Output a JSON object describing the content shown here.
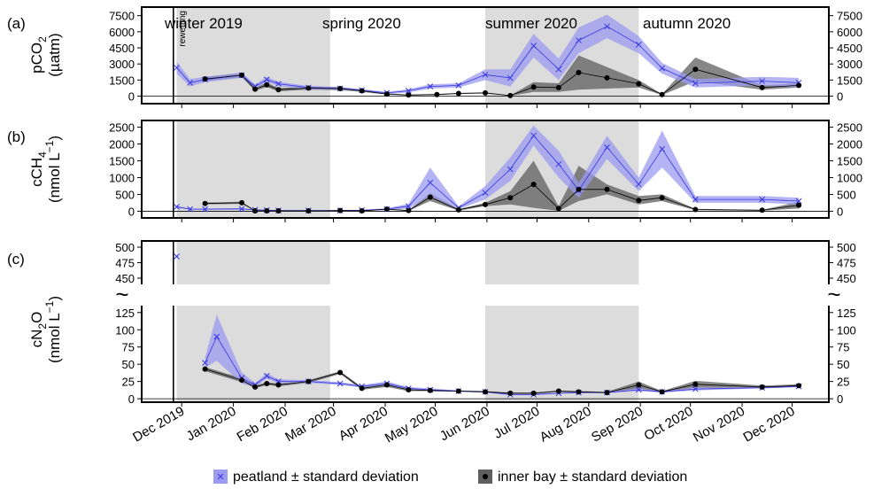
{
  "chart_data": [
    {
      "panel_label": "(a)",
      "type": "line",
      "ylabel_main": "pCO",
      "ylabel_sub": "2",
      "ylabel_unit": "(µatm)",
      "ylim": [
        -700,
        8300
      ],
      "yticks": [
        0,
        1500,
        3000,
        4500,
        6000,
        7500
      ],
      "seasons": [
        "winter 2019",
        "spring 2020",
        "summer 2020",
        "autumn 2020"
      ],
      "annotation": "rewetting",
      "series": [
        {
          "name": "peatland ± standard deviation",
          "x": [
            "2019-11-28",
            "2019-12-06",
            "2019-12-15",
            "2020-01-06",
            "2020-01-14",
            "2020-01-21",
            "2020-01-28",
            "2020-02-15",
            "2020-03-05",
            "2020-03-18",
            "2020-04-02",
            "2020-04-15",
            "2020-04-28",
            "2020-05-15",
            "2020-05-31",
            "2020-06-15",
            "2020-06-29",
            "2020-07-14",
            "2020-07-26",
            "2020-08-12",
            "2020-08-31",
            "2020-09-14",
            "2020-10-04",
            "2020-11-13",
            "2020-12-05"
          ],
          "y": [
            2650,
            1250,
            1550,
            1950,
            900,
            1550,
            1150,
            800,
            720,
            550,
            300,
            500,
            900,
            1000,
            2000,
            1700,
            4700,
            2500,
            5200,
            6500,
            4800,
            2600,
            1200,
            1400,
            1250
          ],
          "lo": [
            2100,
            900,
            1300,
            1700,
            700,
            1300,
            950,
            650,
            600,
            450,
            200,
            350,
            700,
            800,
            1500,
            900,
            3600,
            1500,
            4000,
            5400,
            4000,
            2100,
            800,
            1000,
            800
          ],
          "hi": [
            3200,
            1600,
            1800,
            2200,
            1100,
            1800,
            1350,
            950,
            850,
            650,
            400,
            650,
            1100,
            1200,
            2500,
            2500,
            5800,
            3500,
            6400,
            7600,
            5600,
            3100,
            1600,
            1800,
            1700
          ]
        },
        {
          "name": "inner bay ± standard deviation",
          "x": [
            "2019-12-15",
            "2020-01-06",
            "2020-01-14",
            "2020-01-21",
            "2020-01-28",
            "2020-02-15",
            "2020-03-05",
            "2020-03-18",
            "2020-04-02",
            "2020-04-15",
            "2020-05-02",
            "2020-05-15",
            "2020-05-31",
            "2020-06-15",
            "2020-06-29",
            "2020-07-14",
            "2020-07-26",
            "2020-08-12",
            "2020-08-31",
            "2020-09-14",
            "2020-10-04",
            "2020-11-13",
            "2020-12-05"
          ],
          "y": [
            1600,
            1950,
            650,
            1050,
            600,
            750,
            700,
            500,
            200,
            100,
            150,
            250,
            300,
            50,
            850,
            800,
            2200,
            1700,
            1150,
            150,
            2500,
            800,
            1000
          ],
          "lo": [
            1400,
            1750,
            500,
            850,
            450,
            600,
            550,
            400,
            150,
            50,
            100,
            200,
            250,
            20,
            400,
            400,
            600,
            700,
            800,
            100,
            1400,
            600,
            800
          ],
          "hi": [
            1800,
            2150,
            800,
            1250,
            750,
            900,
            850,
            600,
            250,
            150,
            200,
            300,
            350,
            80,
            1300,
            1200,
            3800,
            2700,
            1500,
            200,
            3600,
            1000,
            1200
          ]
        }
      ]
    },
    {
      "panel_label": "(b)",
      "type": "line",
      "ylabel_main": "cCH",
      "ylabel_sub": "4",
      "ylabel_unit": "(nmol L",
      "ylabel_unit_sup": "−1",
      "ylabel_unit_end": ")",
      "ylim": [
        -200,
        2700
      ],
      "yticks": [
        0,
        500,
        1000,
        1500,
        2000,
        2500
      ],
      "series": [
        {
          "name": "peatland ± standard deviation",
          "x": [
            "2019-11-28",
            "2019-12-06",
            "2019-12-15",
            "2020-01-06",
            "2020-01-14",
            "2020-01-21",
            "2020-01-28",
            "2020-02-15",
            "2020-03-05",
            "2020-03-18",
            "2020-04-02",
            "2020-04-15",
            "2020-04-28",
            "2020-05-15",
            "2020-05-31",
            "2020-06-15",
            "2020-06-29",
            "2020-07-14",
            "2020-07-26",
            "2020-08-12",
            "2020-08-31",
            "2020-09-14",
            "2020-10-04",
            "2020-11-13",
            "2020-12-05"
          ],
          "y": [
            130,
            60,
            60,
            70,
            40,
            30,
            20,
            20,
            20,
            30,
            60,
            150,
            850,
            100,
            550,
            1250,
            2250,
            1400,
            620,
            1900,
            800,
            1850,
            350,
            350,
            300
          ],
          "lo": [
            100,
            40,
            40,
            50,
            25,
            20,
            10,
            10,
            10,
            20,
            30,
            80,
            450,
            60,
            350,
            900,
            1950,
            1000,
            400,
            1550,
            600,
            1300,
            250,
            250,
            200
          ],
          "hi": [
            160,
            80,
            80,
            90,
            55,
            40,
            30,
            30,
            30,
            40,
            90,
            220,
            1300,
            140,
            750,
            1600,
            2550,
            1800,
            840,
            2250,
            1000,
            2400,
            450,
            450,
            400
          ]
        },
        {
          "name": "inner bay ± standard deviation",
          "x": [
            "2019-12-15",
            "2020-01-06",
            "2020-01-14",
            "2020-01-21",
            "2020-01-28",
            "2020-02-15",
            "2020-03-05",
            "2020-03-18",
            "2020-04-02",
            "2020-04-15",
            "2020-04-28",
            "2020-05-15",
            "2020-05-31",
            "2020-06-15",
            "2020-06-29",
            "2020-07-14",
            "2020-07-26",
            "2020-08-12",
            "2020-08-31",
            "2020-09-14",
            "2020-10-04",
            "2020-11-13",
            "2020-12-05"
          ],
          "y": [
            230,
            250,
            10,
            10,
            10,
            10,
            20,
            10,
            60,
            20,
            420,
            40,
            200,
            400,
            800,
            80,
            650,
            650,
            320,
            400,
            50,
            30,
            180
          ],
          "lo": [
            200,
            220,
            5,
            5,
            5,
            5,
            10,
            5,
            40,
            10,
            300,
            20,
            150,
            200,
            100,
            10,
            300,
            500,
            200,
            300,
            30,
            20,
            80
          ],
          "hi": [
            260,
            280,
            15,
            15,
            15,
            15,
            30,
            15,
            80,
            30,
            540,
            60,
            250,
            600,
            1500,
            150,
            1350,
            800,
            450,
            500,
            70,
            40,
            280
          ]
        }
      ]
    },
    {
      "panel_label": "(c)",
      "type": "line",
      "ylabel_main": "cN",
      "ylabel_sub": "2",
      "ylabel_main_end": "O",
      "ylabel_unit": "(nmol L",
      "ylabel_unit_sup": "−1",
      "ylabel_unit_end": ")",
      "ylim_upper": [
        440,
        510
      ],
      "yticks_upper": [
        450,
        475,
        500
      ],
      "ylim_lower": [
        -5,
        135
      ],
      "yticks_lower": [
        0,
        25,
        50,
        75,
        100,
        125
      ],
      "axis_break": "~",
      "series": [
        {
          "name": "peatland ± standard deviation",
          "x": [
            "2019-11-28",
            "2019-12-15",
            "2019-12-22",
            "2020-01-06",
            "2020-01-14",
            "2020-01-21",
            "2020-01-28",
            "2020-02-15",
            "2020-03-05",
            "2020-03-18",
            "2020-04-02",
            "2020-04-15",
            "2020-04-28",
            "2020-05-15",
            "2020-05-31",
            "2020-06-15",
            "2020-06-29",
            "2020-07-14",
            "2020-07-26",
            "2020-08-12",
            "2020-08-31",
            "2020-09-14",
            "2020-10-04",
            "2020-11-13",
            "2020-12-05"
          ],
          "y": [
            485,
            52,
            90,
            30,
            20,
            33,
            25,
            25,
            22,
            18,
            22,
            15,
            13,
            11,
            10,
            6,
            6,
            8,
            9,
            9,
            13,
            10,
            14,
            16,
            18
          ],
          "lo": [
            485,
            45,
            55,
            22,
            17,
            29,
            22,
            23,
            20,
            16,
            19,
            13,
            11,
            10,
            9,
            5,
            5,
            7,
            8,
            8,
            11,
            9,
            12,
            15,
            17
          ],
          "hi": [
            485,
            60,
            122,
            38,
            23,
            37,
            28,
            27,
            24,
            20,
            25,
            17,
            15,
            12,
            11,
            7,
            7,
            9,
            10,
            10,
            15,
            11,
            16,
            17,
            19
          ]
        },
        {
          "name": "inner bay ± standard deviation",
          "x": [
            "2019-12-15",
            "2020-01-06",
            "2020-01-14",
            "2020-01-21",
            "2020-01-28",
            "2020-02-15",
            "2020-03-05",
            "2020-03-18",
            "2020-04-02",
            "2020-04-15",
            "2020-04-28",
            "2020-05-15",
            "2020-05-31",
            "2020-06-15",
            "2020-06-29",
            "2020-07-14",
            "2020-07-26",
            "2020-08-12",
            "2020-08-31",
            "2020-09-14",
            "2020-10-04",
            "2020-11-13",
            "2020-12-05"
          ],
          "y": [
            43,
            27,
            17,
            22,
            20,
            25,
            38,
            15,
            20,
            13,
            12,
            11,
            10,
            8,
            8,
            11,
            10,
            9,
            20,
            10,
            21,
            17,
            19
          ],
          "lo": [
            40,
            24,
            15,
            20,
            18,
            23,
            36,
            13,
            17,
            11,
            11,
            10,
            9,
            7,
            7,
            10,
            9,
            8,
            15,
            9,
            16,
            15,
            17
          ],
          "hi": [
            46,
            30,
            19,
            24,
            22,
            27,
            40,
            17,
            23,
            15,
            13,
            12,
            11,
            9,
            9,
            12,
            11,
            10,
            25,
            11,
            26,
            19,
            21
          ]
        }
      ]
    }
  ],
  "x_axis": {
    "ticks": [
      "2019-12-01",
      "2020-01-01",
      "2020-02-01",
      "2020-03-01",
      "2020-04-01",
      "2020-05-01",
      "2020-06-01",
      "2020-07-01",
      "2020-08-01",
      "2020-09-01",
      "2020-10-01",
      "2020-11-01",
      "2020-12-01"
    ],
    "tick_labels": [
      "Dec 2019",
      "Jan 2020",
      "Feb 2020",
      "Mar 2020",
      "Apr 2020",
      "May 2020",
      "Jun 2020",
      "Jul 2020",
      "Aug 2020",
      "Sep 2020",
      "Oct 2020",
      "Nov 2020",
      "Dec 2020"
    ],
    "range": [
      "2019-11-07",
      "2020-12-23"
    ],
    "rewetting_date": "2019-11-26"
  },
  "season_shading": [
    {
      "start": "2019-11-28",
      "end": "2020-02-28",
      "shaded": true
    },
    {
      "start": "2020-05-31",
      "end": "2020-08-31",
      "shaded": true
    }
  ],
  "legend": {
    "position": "bottom-center",
    "items": [
      "peatland ± standard deviation",
      "inner bay ± standard deviation"
    ]
  },
  "colors": {
    "peatland_line": "#3535e0",
    "peatland_band": "#9b9bf2",
    "innerbay_line": "#000000",
    "innerbay_band": "#5f5f5f",
    "season_shade": "#dcdcdc"
  }
}
